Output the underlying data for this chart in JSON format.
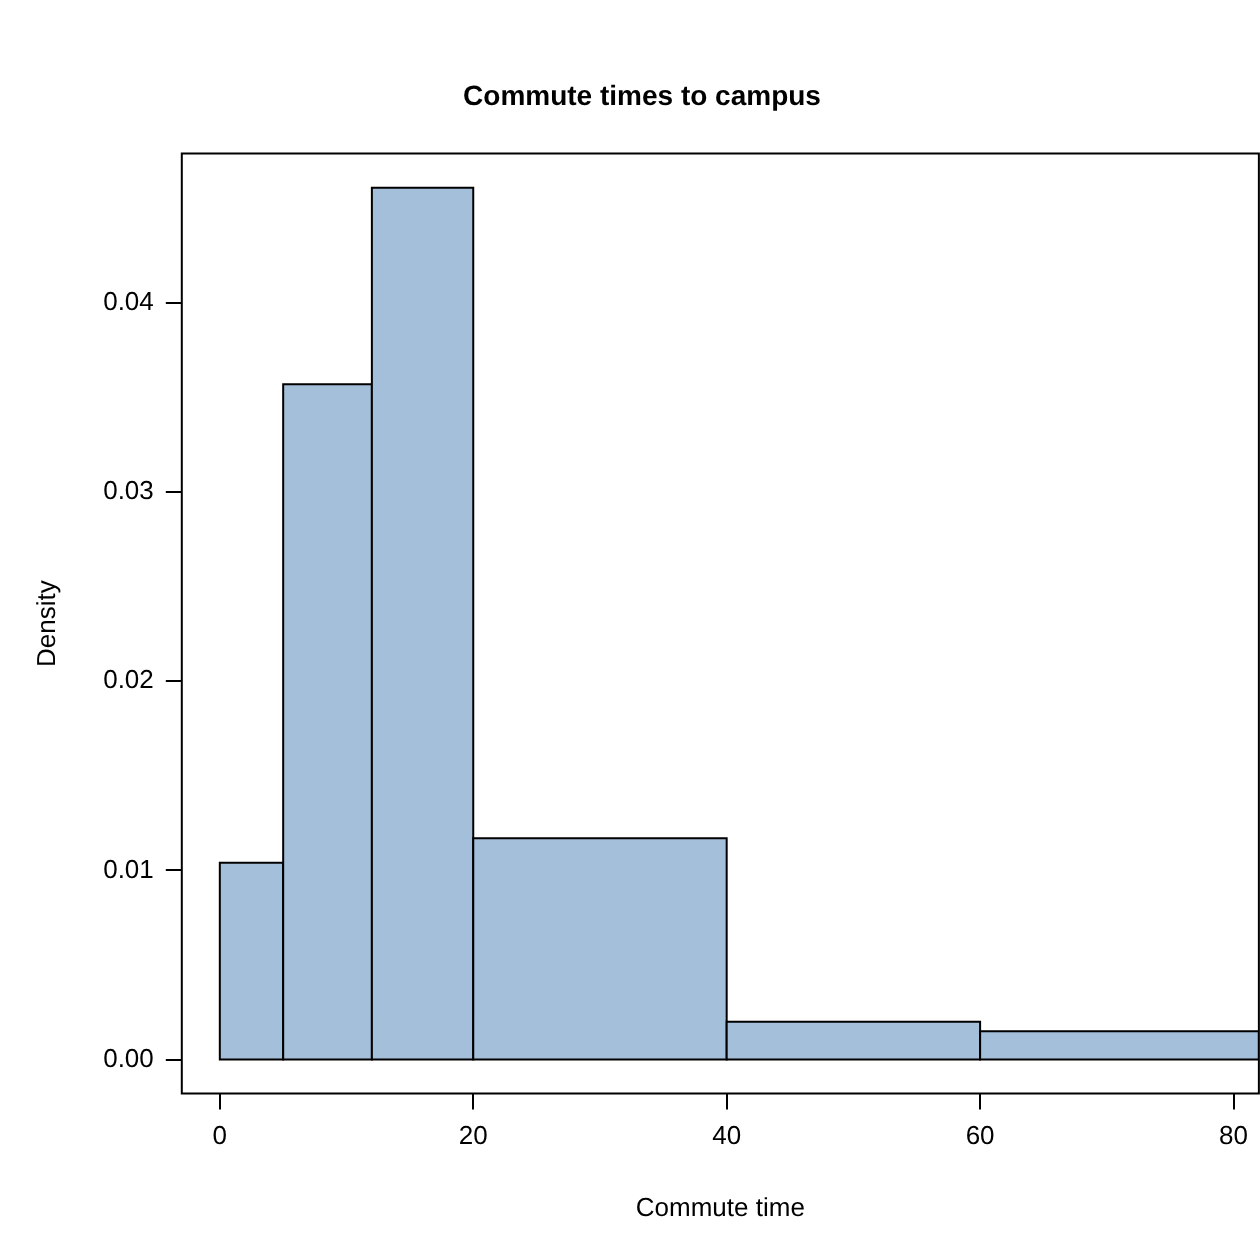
{
  "chart_data": {
    "type": "histogram",
    "title": "Commute times to campus",
    "xlabel": "Commute time",
    "ylabel": "Density",
    "bins": [
      0,
      5,
      12,
      20,
      40,
      60,
      82
    ],
    "values": [
      0.0104,
      0.0357,
      0.0461,
      0.0117,
      0.002,
      0.0015
    ],
    "color": "#a3bfd9",
    "xlim": [
      -3,
      82
    ],
    "xticks": [
      0,
      20,
      40,
      60,
      80
    ],
    "ylim": [
      -0.0018,
      0.0479
    ],
    "yticks": [
      {
        "value": 0,
        "label": "0.00"
      },
      {
        "value": 0.01,
        "label": "0.01"
      },
      {
        "value": 0.02,
        "label": "0.02"
      },
      {
        "value": 0.03,
        "label": "0.03"
      },
      {
        "value": 0.04,
        "label": "0.04"
      }
    ],
    "grid": false,
    "legend": false
  }
}
